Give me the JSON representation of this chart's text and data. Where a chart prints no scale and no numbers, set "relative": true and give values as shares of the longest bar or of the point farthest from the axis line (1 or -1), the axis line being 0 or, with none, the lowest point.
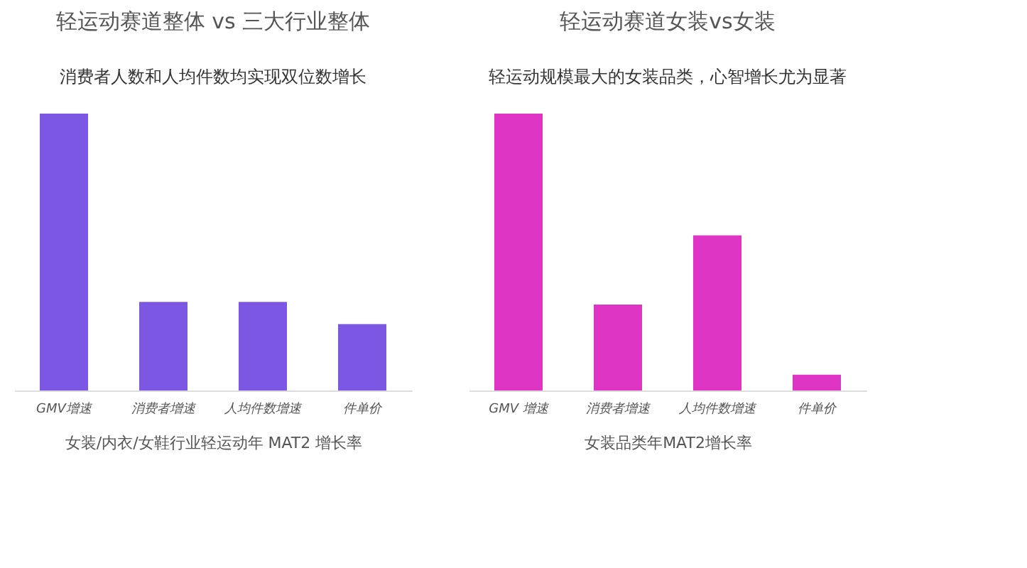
{
  "chart_data": [
    {
      "type": "bar",
      "title": "轻运动赛道整体 vs 三大行业整体",
      "subtitle": "消费者人数和人均件数均实现双位数增长",
      "xlabel": "女装/内衣/女鞋行业轻运动年 MAT2 增长率",
      "categories": [
        "GMV增速",
        "消费者增速",
        "人均件数增速",
        "件单价"
      ],
      "values": [
        1,
        0.32,
        0.32,
        0.24
      ],
      "color": "#7b57e4",
      "relative": true
    },
    {
      "type": "bar",
      "title": "轻运动赛道女装vs女装",
      "subtitle": "轻运动规模最大的女装品类，心智增长尤为显著",
      "xlabel": "女装品类年MAT2增长率",
      "categories": [
        "GMV 增速",
        "消费者增速",
        "人均件数增速",
        "件单价"
      ],
      "values": [
        1,
        0.31,
        0.56,
        0.057
      ],
      "color": "#de35c4",
      "relative": true
    }
  ]
}
